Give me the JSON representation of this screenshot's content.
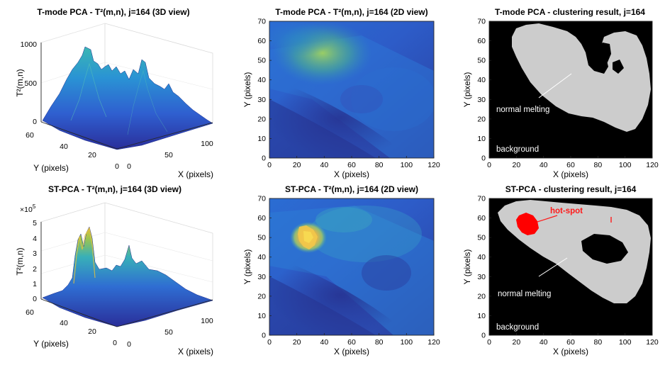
{
  "colors": {
    "ax": "#262626",
    "bg_black": "#000000",
    "cluster_gray": "#cccccc",
    "hotspot_red": "#ff0000",
    "annotation_white": "#ffffff",
    "annotation_red": "#ff1a1a",
    "grid": "#e4e4e4"
  },
  "chart_data": [
    {
      "id": "p1",
      "type": "surface",
      "title": "T-mode PCA - T²(m,n), j=164 (3D view)",
      "xlabel": "X (pixels)",
      "ylabel": "Y (pixels)",
      "zlabel": "T²(m,n)",
      "x_ticks": [
        "0",
        "50",
        "100"
      ],
      "y_ticks": [
        "60",
        "40",
        "20",
        "0"
      ],
      "z_ticks": [
        "0",
        "500",
        "1000"
      ],
      "xlim": [
        0,
        120
      ],
      "ylim": [
        0,
        70
      ],
      "zlim": [
        0,
        1000
      ]
    },
    {
      "id": "p2",
      "type": "heatmap",
      "title": "T-mode PCA - T²(m,n), j=164 (2D view)",
      "xlabel": "X (pixels)",
      "ylabel": "Y (pixels)",
      "x_ticks": [
        "0",
        "20",
        "40",
        "60",
        "80",
        "100",
        "120"
      ],
      "y_ticks": [
        "0",
        "10",
        "20",
        "30",
        "40",
        "50",
        "60",
        "70"
      ],
      "xlim": [
        0,
        120
      ],
      "ylim": [
        0,
        70
      ]
    },
    {
      "id": "p3",
      "type": "heatmap",
      "title": "T-mode PCA - clustering result, j=164",
      "xlabel": "X (pixels)",
      "ylabel": "Y (pixels)",
      "x_ticks": [
        "0",
        "20",
        "40",
        "60",
        "80",
        "100",
        "120"
      ],
      "y_ticks": [
        "0",
        "10",
        "20",
        "30",
        "40",
        "50",
        "60",
        "70"
      ],
      "xlim": [
        0,
        120
      ],
      "ylim": [
        0,
        70
      ],
      "annotations": {
        "normal": "normal melting",
        "background": "background"
      }
    },
    {
      "id": "p4",
      "type": "surface",
      "title": "ST-PCA - T²(m,n), j=164 (3D view)",
      "xlabel": "X (pixels)",
      "ylabel": "Y (pixels)",
      "zlabel": "T²(m,n)",
      "z_exponent": "×10",
      "z_exponent_power": "5",
      "x_ticks": [
        "0",
        "50",
        "100"
      ],
      "y_ticks": [
        "60",
        "40",
        "20",
        "0"
      ],
      "z_ticks": [
        "0",
        "1",
        "2",
        "3",
        "4",
        "5"
      ],
      "xlim": [
        0,
        120
      ],
      "ylim": [
        0,
        70
      ],
      "zlim": [
        0,
        5
      ]
    },
    {
      "id": "p5",
      "type": "heatmap",
      "title": "ST-PCA - T²(m,n), j=164 (2D view)",
      "xlabel": "X (pixels)",
      "ylabel": "Y (pixels)",
      "x_ticks": [
        "0",
        "20",
        "40",
        "60",
        "80",
        "100",
        "120"
      ],
      "y_ticks": [
        "0",
        "10",
        "20",
        "30",
        "40",
        "50",
        "60",
        "70"
      ],
      "xlim": [
        0,
        120
      ],
      "ylim": [
        0,
        70
      ]
    },
    {
      "id": "p6",
      "type": "heatmap",
      "title": "ST-PCA - clustering result, j=164",
      "xlabel": "X (pixels)",
      "ylabel": "Y (pixels)",
      "x_ticks": [
        "0",
        "20",
        "40",
        "60",
        "80",
        "100",
        "120"
      ],
      "y_ticks": [
        "0",
        "10",
        "20",
        "30",
        "40",
        "50",
        "60",
        "70"
      ],
      "xlim": [
        0,
        120
      ],
      "ylim": [
        0,
        70
      ],
      "annotations": {
        "hotspot": "hot-spot",
        "normal": "normal melting",
        "background": "background"
      }
    }
  ]
}
